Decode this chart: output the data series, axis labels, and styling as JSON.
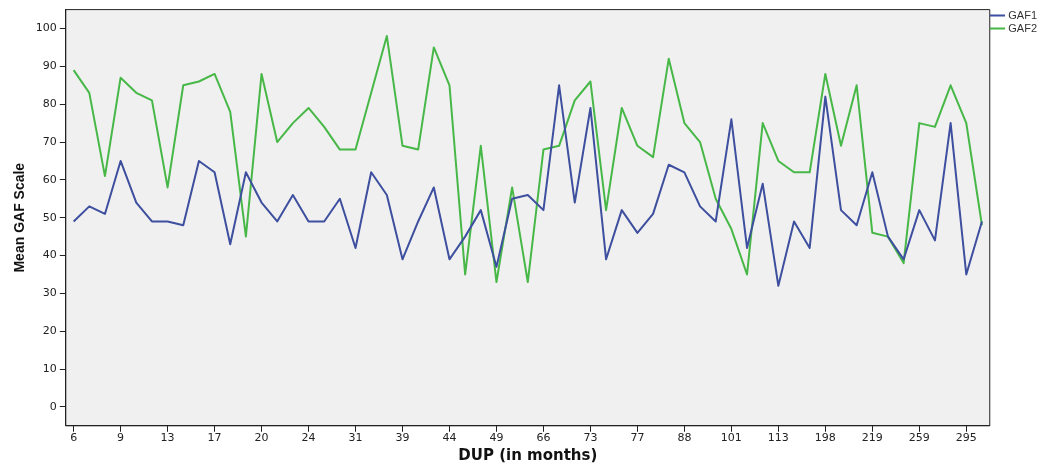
{
  "chart_data": {
    "type": "line",
    "xlabel": "DUP (in months)",
    "ylabel": "Mean GAF Scale",
    "categories": [
      "6",
      null,
      null,
      "9",
      null,
      null,
      "13",
      null,
      null,
      "17",
      null,
      null,
      "20",
      null,
      null,
      "24",
      null,
      null,
      "31",
      null,
      null,
      "39",
      null,
      null,
      "44",
      null,
      null,
      "49",
      null,
      null,
      "66",
      null,
      null,
      "73",
      null,
      null,
      "77",
      null,
      null,
      "88",
      null,
      null,
      "101",
      null,
      null,
      "113",
      null,
      null,
      "198",
      null,
      null,
      "219",
      null,
      null,
      "259",
      null,
      null,
      "295",
      null
    ],
    "series": [
      {
        "name": "GAF1",
        "color": "#3d4f9e",
        "values": [
          49,
          53,
          51,
          65,
          54,
          49,
          49,
          48,
          65,
          62,
          43,
          62,
          54,
          49,
          56,
          49,
          49,
          55,
          42,
          62,
          56,
          39,
          49,
          58,
          39,
          45,
          52,
          37,
          55,
          56,
          52,
          85,
          54,
          79,
          39,
          52,
          46,
          51,
          64,
          62,
          53,
          49,
          76,
          42,
          59,
          32,
          49,
          42,
          82,
          52,
          48,
          62,
          45,
          39,
          52,
          44,
          75,
          35,
          49
        ]
      },
      {
        "name": "GAF2",
        "color": "#47b847",
        "values": [
          89,
          83,
          61,
          87,
          83,
          81,
          58,
          85,
          86,
          88,
          78,
          45,
          88,
          70,
          75,
          79,
          74,
          68,
          68,
          83,
          98,
          69,
          68,
          95,
          85,
          35,
          69,
          33,
          58,
          33,
          68,
          69,
          81,
          86,
          52,
          79,
          69,
          66,
          92,
          75,
          70,
          55,
          47,
          35,
          75,
          65,
          62,
          62,
          88,
          69,
          85,
          46,
          45,
          38,
          75,
          74,
          85,
          75,
          48
        ]
      }
    ],
    "ylim": [
      -5,
      105
    ],
    "yticks": [
      0,
      10,
      20,
      30,
      40,
      50,
      60,
      70,
      80,
      90,
      100
    ],
    "grid": false,
    "legend": "top right",
    "marker": "none",
    "line_style": "solid"
  }
}
